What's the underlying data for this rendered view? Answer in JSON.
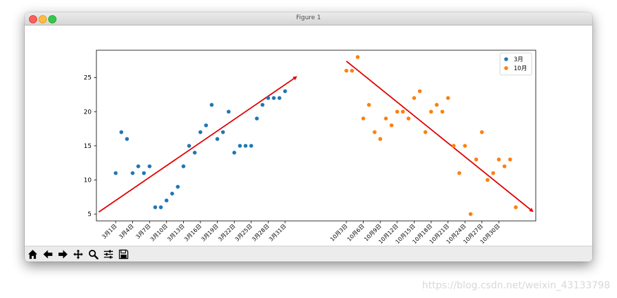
{
  "window": {
    "title": "Figure 1"
  },
  "toolbar": {
    "buttons": [
      "home-icon",
      "back-icon",
      "forward-icon",
      "pan-icon",
      "zoom-icon",
      "configure-icon",
      "save-icon"
    ]
  },
  "watermark": "https://blog.csdn.net/weixin_43133798",
  "chart_data": [
    {
      "type": "scatter",
      "title": "",
      "xlabel": "",
      "ylabel": "",
      "ylim": [
        4,
        29
      ],
      "yticks": [
        5,
        10,
        15,
        20,
        25
      ],
      "grid": false,
      "legend_position": "top-right",
      "xticks": [
        "3月1日",
        "3月4日",
        "3月7日",
        "3月10日",
        "3月13日",
        "3月16日",
        "3月19日",
        "3月22日",
        "3月25日",
        "3月28日",
        "3月31日"
      ],
      "series": [
        {
          "name": "3月",
          "color": "#1f77b4",
          "x": [
            1,
            2,
            3,
            4,
            5,
            6,
            7,
            8,
            9,
            10,
            11,
            12,
            13,
            14,
            15,
            16,
            17,
            18,
            19,
            20,
            21,
            22,
            23,
            24,
            25,
            26,
            27,
            28,
            29,
            30,
            31
          ],
          "y": [
            11,
            17,
            16,
            11,
            12,
            11,
            12,
            6,
            6,
            7,
            8,
            9,
            12,
            15,
            14,
            17,
            18,
            21,
            16,
            17,
            20,
            14,
            15,
            15,
            15,
            19,
            21,
            22,
            22,
            22,
            23
          ]
        }
      ],
      "trend_arrow": {
        "color": "#e00000",
        "from": [
          -2,
          5.3
        ],
        "to": [
          33,
          25.1
        ]
      }
    },
    {
      "type": "scatter",
      "xticks": [
        "10月3日",
        "10月6日",
        "10月9日",
        "10月12日",
        "10月15日",
        "10月18日",
        "10月21日",
        "10月24日",
        "10月27日",
        "10月30日"
      ],
      "series": [
        {
          "name": "10月",
          "color": "#ff7f0e",
          "x": [
            1,
            2,
            3,
            4,
            5,
            6,
            7,
            8,
            9,
            10,
            11,
            12,
            13,
            14,
            15,
            16,
            17,
            18,
            19,
            20,
            21,
            22,
            23,
            24,
            25,
            26,
            27,
            28,
            29,
            30,
            31
          ],
          "y": [
            26,
            26,
            28,
            19,
            21,
            17,
            16,
            19,
            18,
            20,
            20,
            19,
            22,
            23,
            17,
            20,
            21,
            20,
            22,
            15,
            11,
            15,
            5,
            13,
            17,
            10,
            11,
            13,
            12,
            13,
            6
          ]
        }
      ],
      "trend_arrow": {
        "color": "#e00000",
        "from": [
          1,
          27.4
        ],
        "to": [
          34,
          5.4
        ]
      }
    }
  ]
}
